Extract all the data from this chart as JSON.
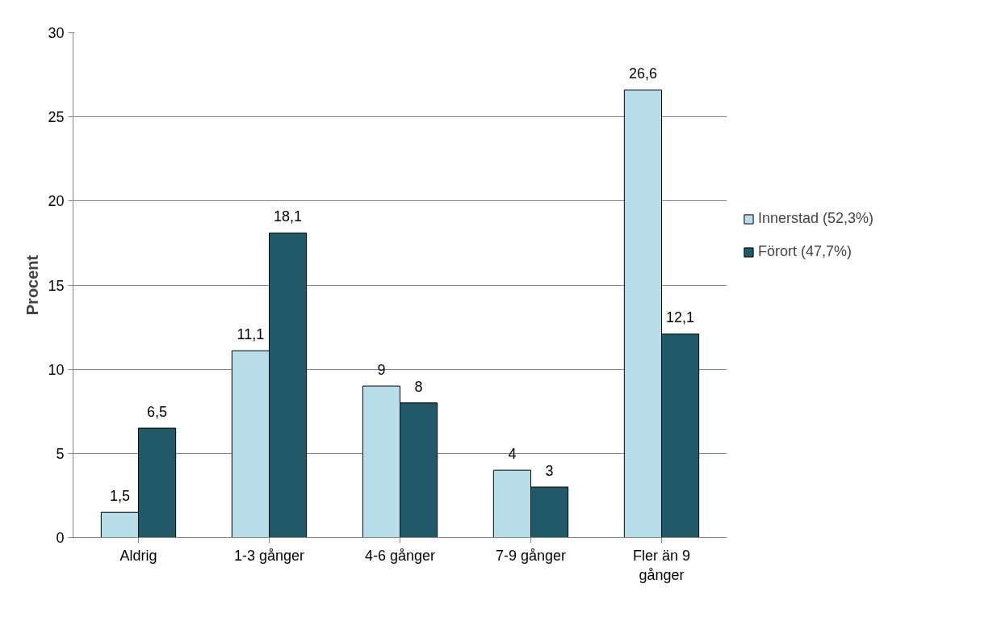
{
  "chart_data": {
    "type": "bar",
    "ylabel": "Procent",
    "categories": [
      "Aldrig",
      "1-3 gånger",
      "4-6 gånger",
      "7-9 gånger",
      "Fler än 9 gånger"
    ],
    "series": [
      {
        "name": "Innerstad (52,3%)",
        "color": "#b7dee8",
        "values": [
          1.5,
          11.1,
          9,
          4,
          26.6
        ],
        "value_labels": [
          "1,5",
          "11,1",
          "9",
          "4",
          "26,6"
        ]
      },
      {
        "name": "Förort (47,7%)",
        "color": "#215968",
        "values": [
          6.5,
          18.1,
          8,
          3,
          12.1
        ],
        "value_labels": [
          "6,5",
          "18,1",
          "8",
          "3",
          "12,1"
        ]
      }
    ],
    "ylim": [
      0,
      30
    ],
    "yticks": [
      0,
      5,
      10,
      15,
      20,
      25,
      30
    ],
    "grid": "y",
    "legend": "right"
  }
}
